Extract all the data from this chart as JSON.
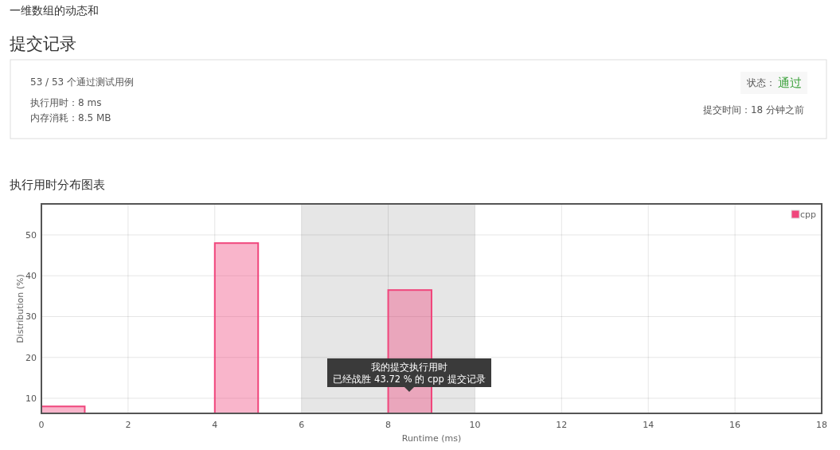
{
  "chart_data": {
    "type": "histogram",
    "title": "执行用时分布图表",
    "xlabel": "Runtime (ms)",
    "ylabel": "Distribution (%)",
    "bins": [
      0,
      1,
      2,
      3,
      4,
      5,
      6,
      7,
      8,
      9
    ],
    "series": [
      {
        "name": "cpp",
        "color": "#f0467c",
        "values": [
          8,
          null,
          null,
          null,
          48,
          null,
          null,
          null,
          36.5
        ]
      }
    ],
    "xlim": [
      0,
      18
    ],
    "xticks": [
      0,
      2,
      4,
      6,
      8,
      10,
      12,
      14,
      16,
      18
    ],
    "ylim": [
      6.3,
      57.6
    ],
    "yticks": [
      10,
      20,
      30,
      40,
      50
    ],
    "grid": true,
    "legend": "top right",
    "bands": [
      {
        "axis": "x",
        "from": 6,
        "to": 10,
        "color": "#e6e6e6"
      }
    ],
    "annotations": [
      "一维数组的动态和",
      "提交记录",
      "53 / 53 个通过测试用例",
      "执行用时：8 ms",
      "内存消耗：8.5 MB",
      "状态：",
      "通过",
      "提交时间：18 分钟之前",
      "我的提交执行用时",
      "已经战胜 43.72 % 的 cpp 提交记录"
    ]
  }
}
